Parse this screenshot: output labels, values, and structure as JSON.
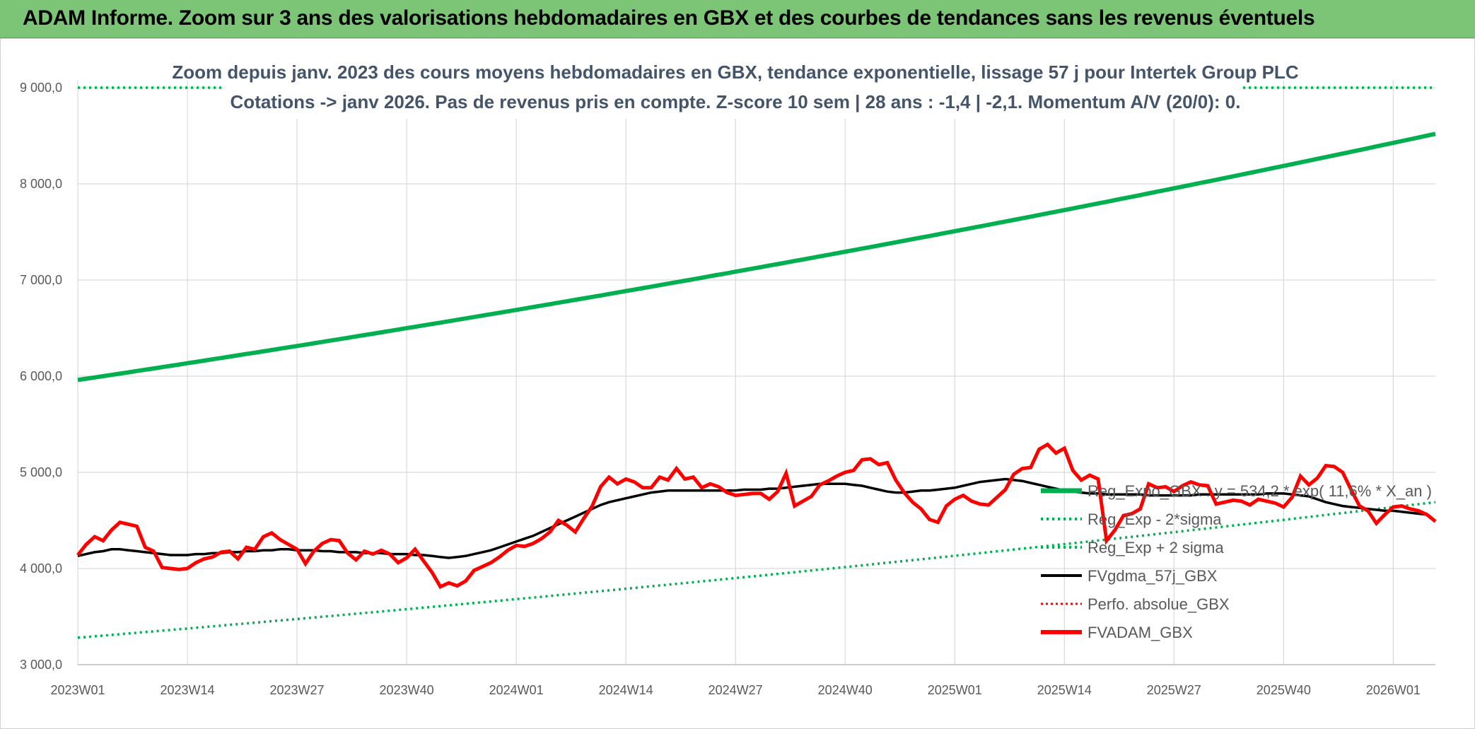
{
  "header": {
    "title": "ADAM Informe. Zoom sur 3 ans des valorisations hebdomadaires en GBX et des courbes de tendances sans les revenus éventuels"
  },
  "chart_data": {
    "type": "line",
    "subtitle_line1": "Zoom depuis janv. 2023 des cours moyens hebdomadaires en GBX, tendance exponentielle, lissage 57 j pour Intertek Group PLC",
    "subtitle_line2": "Cotations -> janv 2026. Pas de revenus pris en compte. Z-score 10 sem | 28 ans : -1,4 | -2,1. Momentum A/V (20/0): 0.",
    "ylim": [
      3000,
      9000
    ],
    "yticks": [
      3000,
      4000,
      5000,
      6000,
      7000,
      8000,
      9000
    ],
    "ytick_labels": [
      "3 000,0",
      "4 000,0",
      "5 000,0",
      "6 000,0",
      "7 000,0",
      "8 000,0",
      "9 000,0"
    ],
    "x_tick_labels": [
      "2023W01",
      "2023W14",
      "2023W27",
      "2023W40",
      "2024W01",
      "2024W14",
      "2024W27",
      "2024W40",
      "2025W01",
      "2025W14",
      "2025W27",
      "2025W40",
      "2026W01"
    ],
    "x_tick_week_index": [
      0,
      13,
      26,
      39,
      52,
      65,
      78,
      91,
      104,
      117,
      130,
      143,
      156
    ],
    "x_weeks_total": 162,
    "grid": true,
    "legend_position": "bottom-right",
    "colors": {
      "green": "#00b050",
      "green_dotted": "#00b050",
      "black": "#000000",
      "red": "#ff0000"
    },
    "series": [
      {
        "name": "Reg_Expo_GBX : y = 534,2 * exp( 11,6% * X_an )",
        "style": "solid-green-thick",
        "start": 5960,
        "end": 8520
      },
      {
        "name": "Reg_Exp - 2*sigma",
        "style": "dotted-green",
        "start": 3280,
        "end": 4690
      },
      {
        "name": "Reg_Exp + 2 sigma",
        "style": "dotted-green",
        "start": 9000,
        "end": 9000
      },
      {
        "name": "FVgdma_57j_GBX",
        "style": "solid-black",
        "values": [
          4130,
          4150,
          4170,
          4180,
          4200,
          4200,
          4190,
          4180,
          4170,
          4160,
          4150,
          4140,
          4140,
          4140,
          4150,
          4150,
          4160,
          4160,
          4170,
          4170,
          4180,
          4180,
          4190,
          4190,
          4200,
          4200,
          4190,
          4190,
          4190,
          4180,
          4180,
          4170,
          4170,
          4170,
          4160,
          4160,
          4160,
          4150,
          4150,
          4150,
          4140,
          4140,
          4130,
          4120,
          4110,
          4120,
          4130,
          4150,
          4170,
          4190,
          4220,
          4250,
          4280,
          4310,
          4340,
          4380,
          4420,
          4460,
          4500,
          4540,
          4580,
          4620,
          4660,
          4690,
          4710,
          4730,
          4750,
          4770,
          4790,
          4800,
          4810,
          4810,
          4810,
          4810,
          4810,
          4810,
          4810,
          4810,
          4810,
          4820,
          4820,
          4820,
          4830,
          4830,
          4840,
          4850,
          4860,
          4870,
          4880,
          4880,
          4880,
          4880,
          4870,
          4860,
          4840,
          4820,
          4800,
          4790,
          4790,
          4800,
          4810,
          4810,
          4820,
          4830,
          4840,
          4860,
          4880,
          4900,
          4910,
          4920,
          4930,
          4920,
          4910,
          4890,
          4870,
          4850,
          4830,
          4810,
          4800,
          4790,
          4780,
          4780,
          4770,
          4770,
          4770,
          4770,
          4770,
          4760,
          4760,
          4760,
          4760,
          4760,
          4760,
          4770,
          4770,
          4770,
          4770,
          4770,
          4770,
          4770,
          4770,
          4780,
          4780,
          4780,
          4770,
          4760,
          4750,
          4720,
          4690,
          4670,
          4650,
          4640,
          4630,
          4620,
          4610,
          4600,
          4600,
          4590,
          4580,
          4570,
          4560
        ]
      },
      {
        "name": "Perfo. absolue_GBX",
        "style": "dotted-red",
        "values": []
      },
      {
        "name": "FVADAM_GBX",
        "style": "solid-red-thick",
        "values": [
          4140,
          4250,
          4330,
          4290,
          4400,
          4480,
          4460,
          4440,
          4220,
          4180,
          4010,
          4000,
          3990,
          4000,
          4060,
          4100,
          4120,
          4170,
          4180,
          4100,
          4220,
          4200,
          4330,
          4370,
          4300,
          4250,
          4200,
          4050,
          4180,
          4260,
          4300,
          4290,
          4160,
          4090,
          4180,
          4150,
          4190,
          4150,
          4060,
          4110,
          4200,
          4080,
          3960,
          3810,
          3850,
          3820,
          3870,
          3980,
          4020,
          4060,
          4120,
          4190,
          4240,
          4230,
          4260,
          4310,
          4380,
          4500,
          4450,
          4380,
          4520,
          4650,
          4850,
          4950,
          4880,
          4930,
          4900,
          4840,
          4840,
          4950,
          4920,
          5040,
          4930,
          4950,
          4840,
          4880,
          4850,
          4790,
          4760,
          4770,
          4780,
          4780,
          4720,
          4800,
          4990,
          4650,
          4700,
          4750,
          4870,
          4910,
          4960,
          5000,
          5020,
          5130,
          5140,
          5080,
          5100,
          4920,
          4790,
          4690,
          4620,
          4510,
          4480,
          4650,
          4720,
          4760,
          4700,
          4670,
          4660,
          4740,
          4820,
          4980,
          5040,
          5050,
          5240,
          5290,
          5200,
          5250,
          5020,
          4920,
          4970,
          4930,
          4290,
          4400,
          4550,
          4570,
          4620,
          4880,
          4840,
          4850,
          4800,
          4860,
          4900,
          4870,
          4860,
          4670,
          4690,
          4710,
          4700,
          4660,
          4720,
          4700,
          4680,
          4640,
          4740,
          4960,
          4870,
          4940,
          5070,
          5060,
          5000,
          4820,
          4650,
          4600,
          4470,
          4560,
          4640,
          4650,
          4620,
          4600,
          4560,
          4490
        ]
      }
    ]
  }
}
